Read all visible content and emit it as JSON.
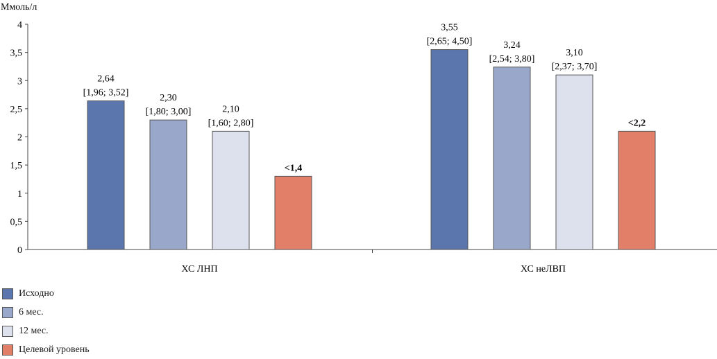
{
  "chart_data": {
    "type": "bar",
    "ylabel": "Ммоль/л",
    "ylim": [
      0,
      4
    ],
    "yticks": [
      "0",
      "0,5",
      "1",
      "1,5",
      "2",
      "2,5",
      "3",
      "3,5",
      "4"
    ],
    "categories": [
      "ХС ЛНП",
      "ХС неЛВП"
    ],
    "series": [
      {
        "name": "Исходно",
        "color": "#5a76ad",
        "values": [
          2.64,
          3.55
        ],
        "labels": [
          [
            "2,64",
            "[1,96; 3,52]"
          ],
          [
            "3,55",
            "[2,65; 4,50]"
          ]
        ]
      },
      {
        "name": "6 мес.",
        "color": "#99a7cb",
        "values": [
          2.3,
          3.24
        ],
        "labels": [
          [
            "2,30",
            "[1,80; 3,00]"
          ],
          [
            "3,24",
            "[2,54; 3,80]"
          ]
        ]
      },
      {
        "name": "12 мес.",
        "color": "#dde1ee",
        "values": [
          2.1,
          3.1
        ],
        "labels": [
          [
            "2,10",
            "[1,60; 2,80]"
          ],
          [
            "3,10",
            "[2,37; 3,70]"
          ]
        ]
      },
      {
        "name": "Целевой уровень",
        "color": "#e27f68",
        "values": [
          1.3,
          2.1
        ],
        "labels": [
          [
            "<1,4"
          ],
          [
            "<2,2"
          ]
        ],
        "bold": true
      }
    ],
    "grid": false,
    "legend": "bottom-left"
  }
}
